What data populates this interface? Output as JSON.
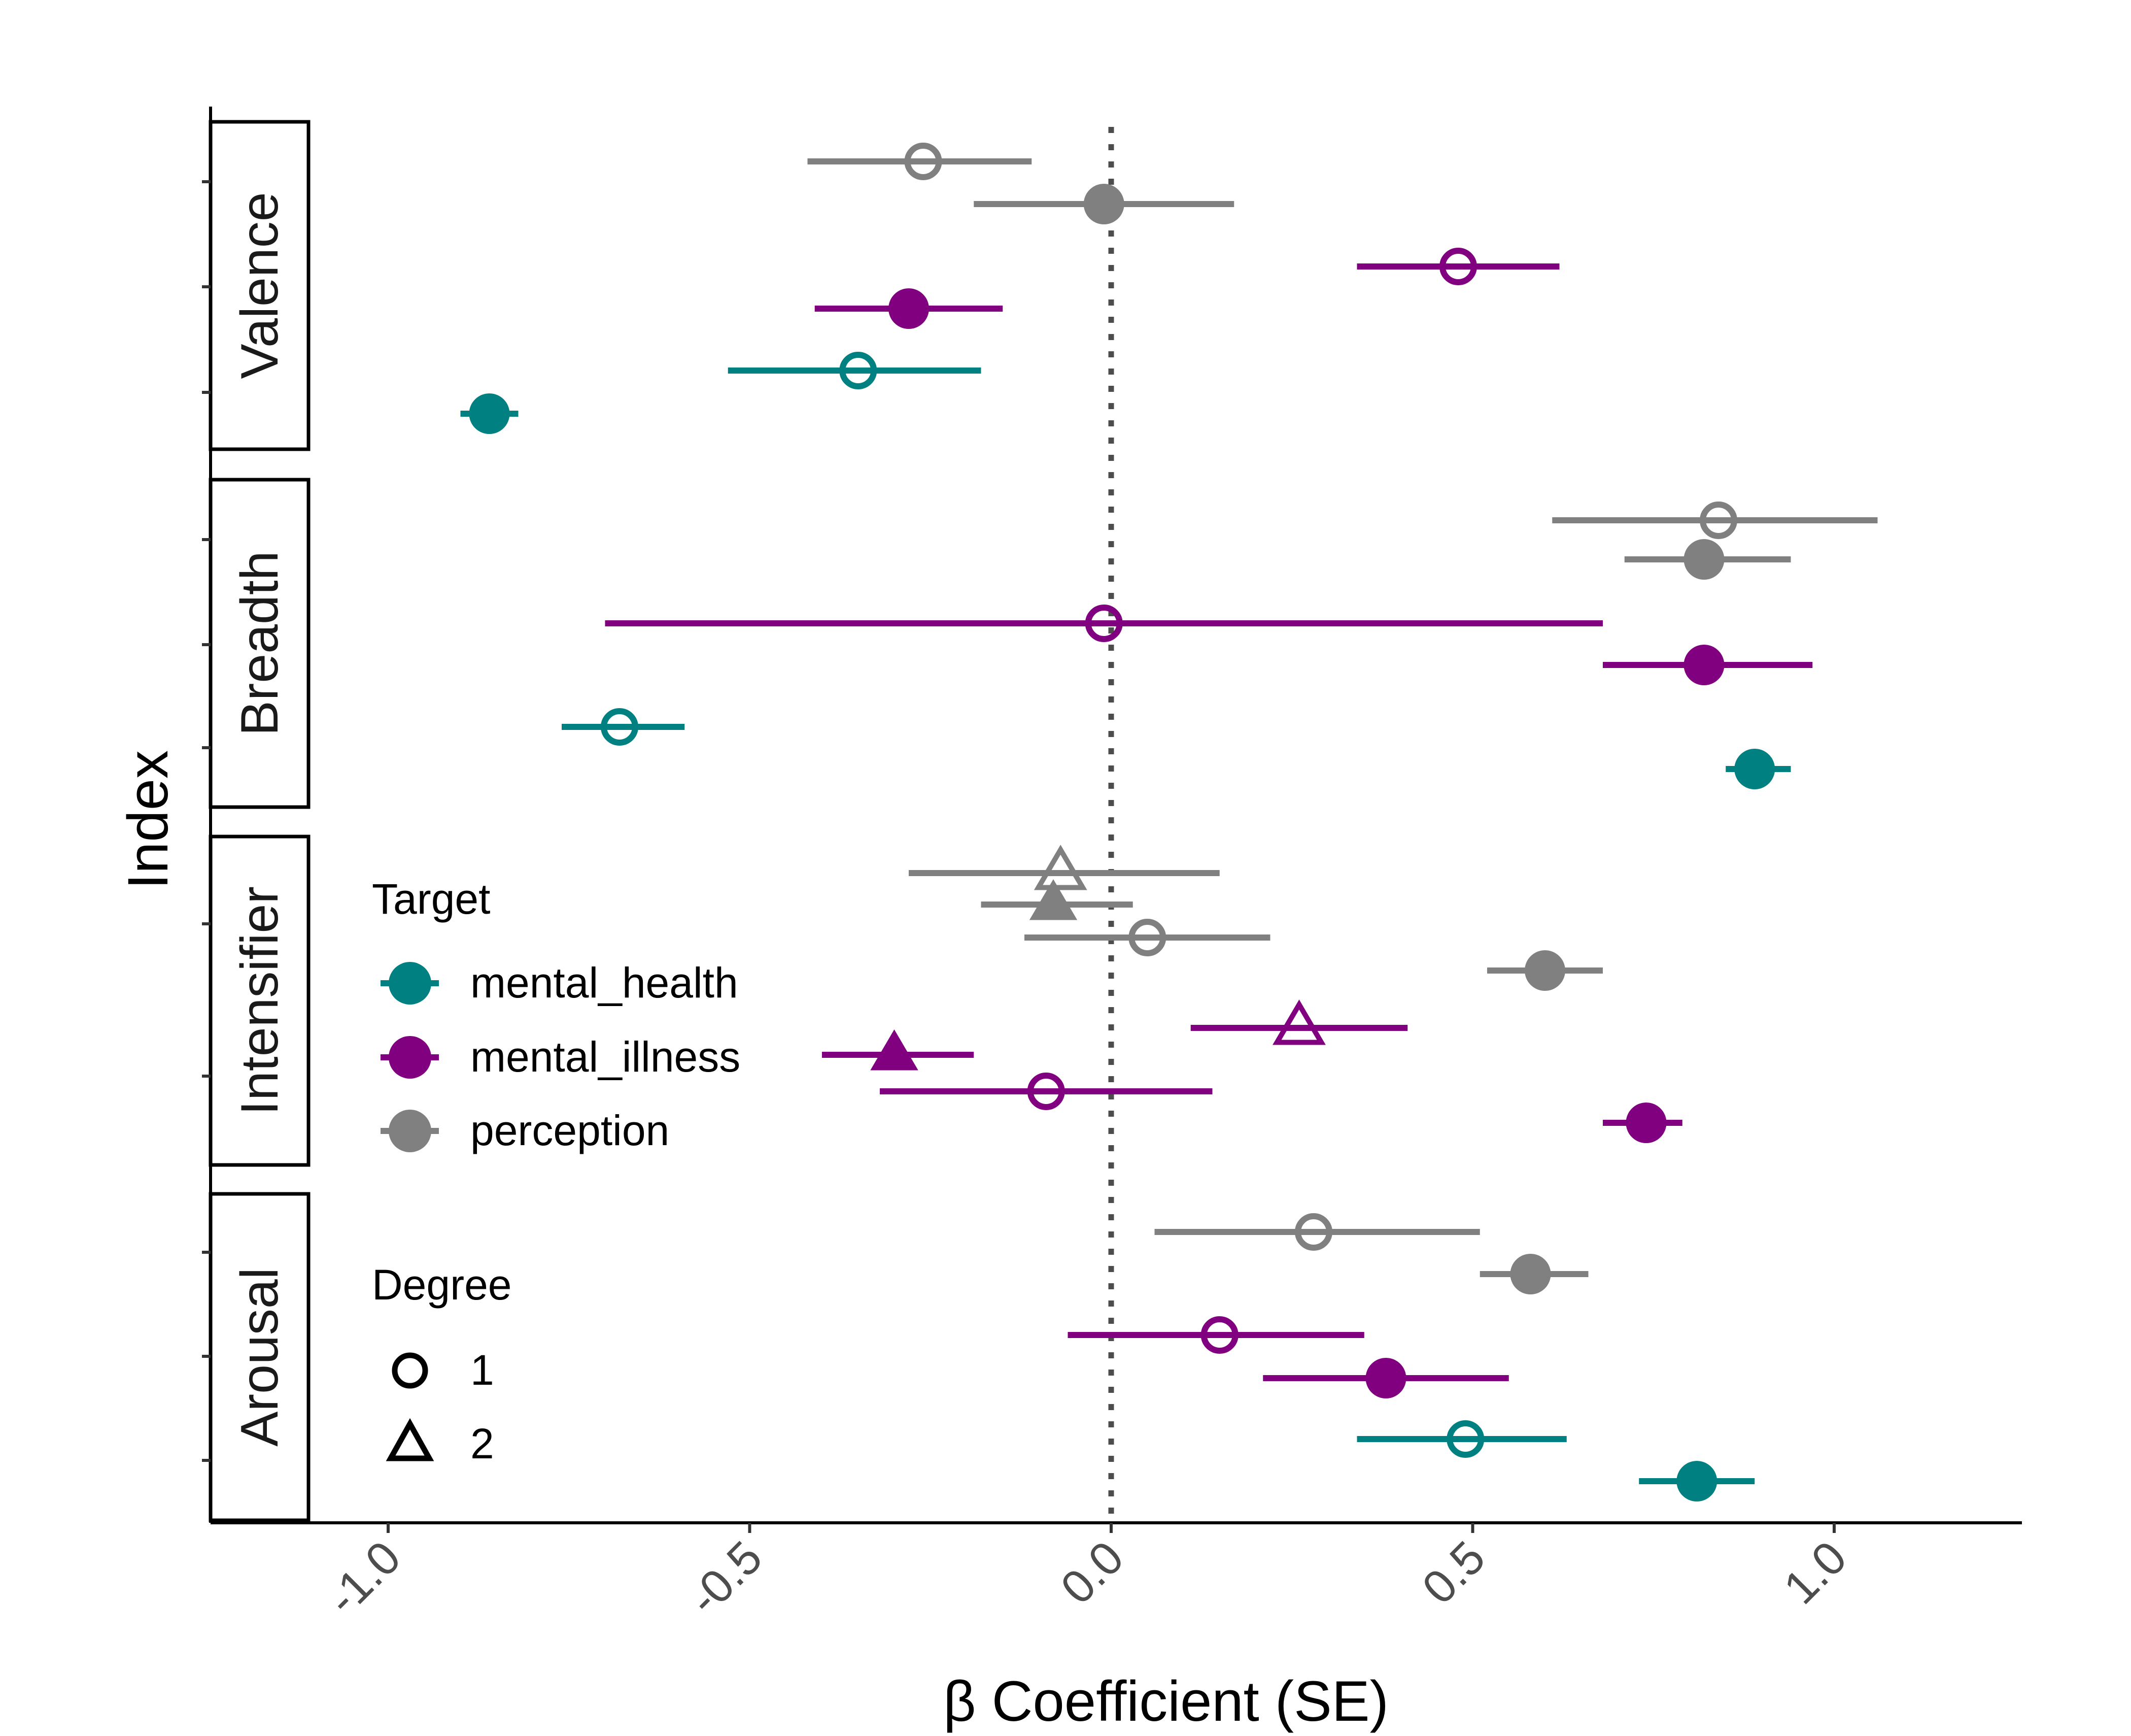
{
  "chart_data": {
    "type": "scatter",
    "subtype": "forest-plot with error bars, faceted by index",
    "xlabel": "β Coefficient (SE)",
    "ylabel": "Index",
    "xlim": [
      -1.25,
      1.25
    ],
    "x_ticks": [
      -1.0,
      -0.5,
      0.0,
      0.5,
      1.0
    ],
    "x_tick_labels": [
      "-1.0",
      "-0.5",
      "0.0",
      "0.5",
      "1.0"
    ],
    "reference_line": 0.0,
    "grid": false,
    "facets": [
      "Valence",
      "Breadth",
      "Intensifier",
      "Arousal"
    ],
    "legend": {
      "placement": "inside-left",
      "target_title": "Target",
      "targets": [
        {
          "name": "mental_health",
          "color": "#008080"
        },
        {
          "name": "mental_illness",
          "color": "#800080"
        },
        {
          "name": "perception",
          "color": "#808080"
        }
      ],
      "degree_title": "Degree",
      "degrees": [
        {
          "name": "1",
          "shape": "circle"
        },
        {
          "name": "2",
          "shape": "triangle"
        }
      ]
    },
    "points": [
      {
        "facet": "Valence",
        "row": 1,
        "target": "perception",
        "degree": "1",
        "filled": false,
        "estimate": -0.26,
        "low": -0.42,
        "high": -0.11
      },
      {
        "facet": "Valence",
        "row": 1,
        "target": "perception",
        "degree": "1",
        "filled": true,
        "estimate": -0.01,
        "low": -0.19,
        "high": 0.17
      },
      {
        "facet": "Valence",
        "row": 2,
        "target": "mental_illness",
        "degree": "1",
        "filled": false,
        "estimate": 0.48,
        "low": 0.34,
        "high": 0.62
      },
      {
        "facet": "Valence",
        "row": 2,
        "target": "mental_illness",
        "degree": "1",
        "filled": true,
        "estimate": -0.28,
        "low": -0.41,
        "high": -0.15
      },
      {
        "facet": "Valence",
        "row": 3,
        "target": "mental_health",
        "degree": "1",
        "filled": false,
        "estimate": -0.35,
        "low": -0.53,
        "high": -0.18
      },
      {
        "facet": "Valence",
        "row": 3,
        "target": "mental_health",
        "degree": "1",
        "filled": true,
        "estimate": -0.86,
        "low": -0.9,
        "high": -0.82
      },
      {
        "facet": "Breadth",
        "row": 1,
        "target": "perception",
        "degree": "1",
        "filled": false,
        "estimate": 0.84,
        "low": 0.61,
        "high": 1.06
      },
      {
        "facet": "Breadth",
        "row": 1,
        "target": "perception",
        "degree": "1",
        "filled": true,
        "estimate": 0.82,
        "low": 0.71,
        "high": 0.94
      },
      {
        "facet": "Breadth",
        "row": 2,
        "target": "mental_illness",
        "degree": "1",
        "filled": false,
        "estimate": -0.01,
        "low": -0.7,
        "high": 0.68
      },
      {
        "facet": "Breadth",
        "row": 2,
        "target": "mental_illness",
        "degree": "1",
        "filled": true,
        "estimate": 0.82,
        "low": 0.68,
        "high": 0.97
      },
      {
        "facet": "Breadth",
        "row": 3,
        "target": "mental_health",
        "degree": "1",
        "filled": false,
        "estimate": -0.68,
        "low": -0.76,
        "high": -0.59
      },
      {
        "facet": "Breadth",
        "row": 3,
        "target": "mental_health",
        "degree": "1",
        "filled": true,
        "estimate": 0.89,
        "low": 0.85,
        "high": 0.94
      },
      {
        "facet": "Intensifier",
        "row": 1,
        "target": "perception",
        "degree": "2",
        "filled": false,
        "estimate": -0.07,
        "low": -0.28,
        "high": 0.15
      },
      {
        "facet": "Intensifier",
        "row": 1,
        "target": "perception",
        "degree": "2",
        "filled": true,
        "estimate": -0.08,
        "low": -0.18,
        "high": 0.03
      },
      {
        "facet": "Intensifier",
        "row": 1,
        "target": "perception",
        "degree": "1",
        "filled": false,
        "estimate": 0.05,
        "low": -0.12,
        "high": 0.22
      },
      {
        "facet": "Intensifier",
        "row": 1,
        "target": "perception",
        "degree": "1",
        "filled": true,
        "estimate": 0.6,
        "low": 0.52,
        "high": 0.68
      },
      {
        "facet": "Intensifier",
        "row": 2,
        "target": "mental_illness",
        "degree": "2",
        "filled": false,
        "estimate": 0.26,
        "low": 0.11,
        "high": 0.41
      },
      {
        "facet": "Intensifier",
        "row": 2,
        "target": "mental_illness",
        "degree": "2",
        "filled": true,
        "estimate": -0.3,
        "low": -0.4,
        "high": -0.19
      },
      {
        "facet": "Intensifier",
        "row": 2,
        "target": "mental_illness",
        "degree": "1",
        "filled": false,
        "estimate": -0.09,
        "low": -0.32,
        "high": 0.14
      },
      {
        "facet": "Intensifier",
        "row": 2,
        "target": "mental_illness",
        "degree": "1",
        "filled": true,
        "estimate": 0.74,
        "low": 0.68,
        "high": 0.79
      },
      {
        "facet": "Arousal",
        "row": 1,
        "target": "perception",
        "degree": "1",
        "filled": false,
        "estimate": 0.28,
        "low": 0.06,
        "high": 0.51
      },
      {
        "facet": "Arousal",
        "row": 1,
        "target": "perception",
        "degree": "1",
        "filled": true,
        "estimate": 0.58,
        "low": 0.51,
        "high": 0.66
      },
      {
        "facet": "Arousal",
        "row": 2,
        "target": "mental_illness",
        "degree": "1",
        "filled": false,
        "estimate": 0.15,
        "low": -0.06,
        "high": 0.35
      },
      {
        "facet": "Arousal",
        "row": 2,
        "target": "mental_illness",
        "degree": "1",
        "filled": true,
        "estimate": 0.38,
        "low": 0.21,
        "high": 0.55
      },
      {
        "facet": "Arousal",
        "row": 3,
        "target": "mental_health",
        "degree": "1",
        "filled": false,
        "estimate": 0.49,
        "low": 0.34,
        "high": 0.63
      },
      {
        "facet": "Arousal",
        "row": 3,
        "target": "mental_health",
        "degree": "1",
        "filled": true,
        "estimate": 0.81,
        "low": 0.73,
        "high": 0.89
      }
    ]
  }
}
